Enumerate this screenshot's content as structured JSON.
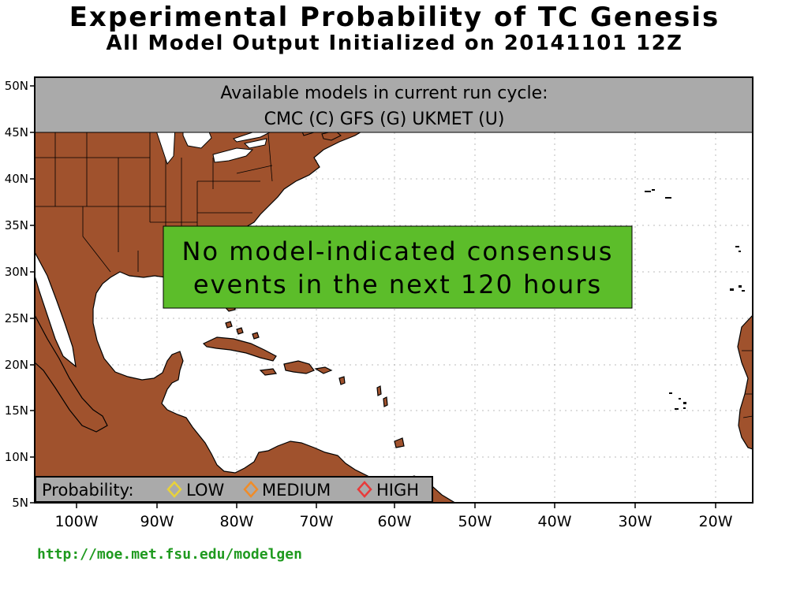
{
  "title": "Experimental Probability of TC Genesis",
  "subtitle": "All Model Output Initialized on 20141101 12Z",
  "models_box": {
    "line1": "Available models in current run cycle:",
    "line2": "CMC (C) GFS (G)  UKMET (U)"
  },
  "message": {
    "line1": "No model-indicated consensus",
    "line2": "events in the next 120 hours"
  },
  "legend": {
    "label": "Probability:",
    "items": [
      {
        "label": "LOW",
        "color": "#e8d23a"
      },
      {
        "label": "MEDIUM",
        "color": "#f08c28"
      },
      {
        "label": "HIGH",
        "color": "#e83a3a"
      }
    ]
  },
  "lat_labels": [
    "50N",
    "45N",
    "40N",
    "35N",
    "30N",
    "25N",
    "20N",
    "15N",
    "10N",
    "5N"
  ],
  "lon_labels": [
    "100W",
    "90W",
    "80W",
    "70W",
    "60W",
    "50W",
    "40W",
    "30W",
    "20W"
  ],
  "url": "http://moe.met.fsu.edu/modelgen",
  "colors": {
    "land": "#a0522d",
    "ocean": "#ffffff",
    "header_box": "#aaaaaa",
    "message_box": "#5cbd2a",
    "legend_box": "#aaaaaa",
    "url": "#1f9a1f"
  }
}
